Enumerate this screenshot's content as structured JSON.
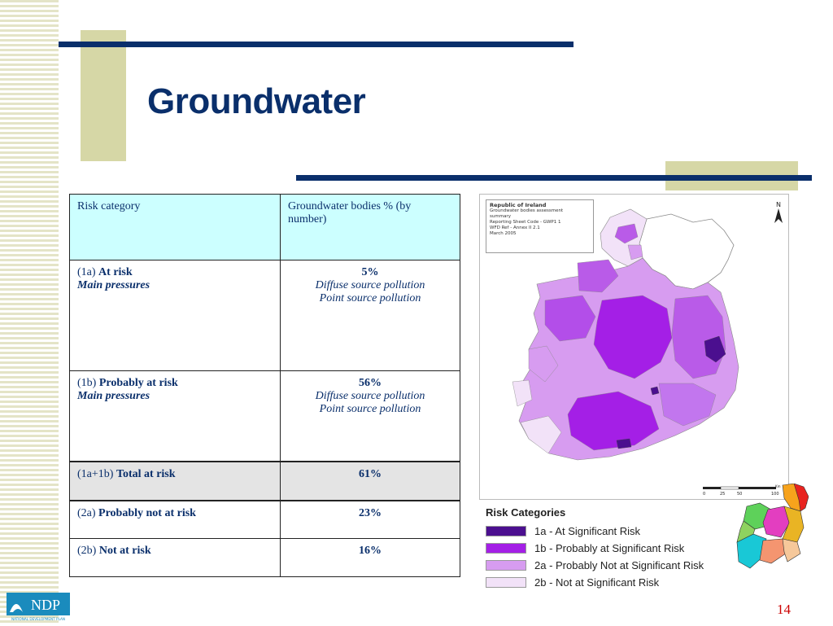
{
  "slide": {
    "title": "Groundwater",
    "page_number": "14"
  },
  "table": {
    "headers": [
      "Risk category",
      "Groundwater bodies % (by number)"
    ],
    "rows": [
      {
        "code": "(1a)",
        "label": "At risk",
        "sublabel": "Main pressures",
        "value": "5%",
        "pressures": [
          "Diffuse source pollution",
          "Point source pollution"
        ]
      },
      {
        "code": "(1b)",
        "label": "Probably at risk",
        "sublabel": "Main pressures",
        "value": "56%",
        "pressures": [
          "Diffuse source pollution",
          "Point source pollution"
        ]
      },
      {
        "code": "(1a+1b)",
        "label": "Total at risk",
        "value": "61%"
      },
      {
        "code": "(2a)",
        "label": "Probably not at risk",
        "value": "23%"
      },
      {
        "code": "(2b)",
        "label": "Not at risk",
        "value": "16%"
      }
    ]
  },
  "map": {
    "info_box": {
      "title": "Republic of Ireland",
      "lines": [
        "Groundwater bodies assessment",
        "summary",
        "Reporting Sheet Code - GWP1 1",
        "WFD Ref - Annex II 2.1",
        "March 2005"
      ]
    },
    "north_label": "N",
    "scale": {
      "ticks": [
        "0",
        "25",
        "50",
        "100"
      ],
      "unit": "Km"
    },
    "legend": {
      "title": "Risk Categories",
      "items": [
        {
          "label": "1a - At Significant Risk",
          "color": "#4b0f8f"
        },
        {
          "label": "1b - Probably at Significant Risk",
          "color": "#a41fe6"
        },
        {
          "label": "2a - Probably Not at Significant Risk",
          "color": "#d79cf0"
        },
        {
          "label": "2b - Not at Significant Risk",
          "color": "#f2e2f8"
        }
      ]
    }
  },
  "logo": {
    "text": "NDP",
    "subtext": "NATIONAL DEVELOPMENT PLAN"
  },
  "colors": {
    "navy": "#0a2f6b",
    "olive": "#d6d7a6",
    "header_fill": "#ccffff",
    "total_fill": "#e4e4e4",
    "page_number": "#cc0000"
  }
}
